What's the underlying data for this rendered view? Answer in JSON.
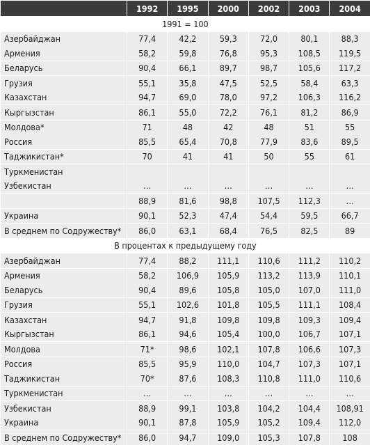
{
  "table": {
    "columns": [
      "",
      "1992",
      "1995",
      "2000",
      "2002",
      "2003",
      "2004"
    ],
    "sections": [
      {
        "title": "1991 = 100",
        "groups": [
          [
            {
              "name": "Азербайджан",
              "values": [
                "77,4",
                "42,2",
                "59,3",
                "72,0",
                "80,1",
                "88,3"
              ]
            },
            {
              "name": "Армения",
              "values": [
                "58,2",
                "59,8",
                "76,8",
                "95,3",
                "108,5",
                "119,5"
              ]
            }
          ],
          [
            {
              "name": "Беларусь",
              "values": [
                "90,4",
                "66,1",
                "89,7",
                "98,7",
                "105,6",
                "117,2"
              ]
            }
          ],
          [
            {
              "name": "Грузия",
              "values": [
                "55,1",
                "35,8",
                "47,5",
                "52,5",
                "58,4",
                "63,3"
              ]
            },
            {
              "name": "Казахстан",
              "values": [
                "94,7",
                "69,0",
                "78,0",
                "97,2",
                "106,3",
                "116,2"
              ]
            }
          ],
          [
            {
              "name": "Кыргызстан",
              "values": [
                "86,1",
                "55,0",
                "72,2",
                "76,1",
                "81,2",
                "86,9"
              ]
            }
          ],
          [
            {
              "name": "Молдова*",
              "values": [
                "71",
                "48",
                "42",
                "48",
                "51",
                "55"
              ]
            },
            {
              "name": "Россия",
              "values": [
                "85,5",
                "65,4",
                "70,8",
                "77,9",
                "83,6",
                "89,5"
              ]
            }
          ],
          [
            {
              "name": "Таджикистан*",
              "values": [
                "70",
                "41",
                "41",
                "50",
                "55",
                "61"
              ]
            }
          ],
          [
            {
              "name": "Туркменистан",
              "values": [
                "",
                "",
                "",
                "",
                "",
                ""
              ]
            },
            {
              "name": "Узбекистан",
              "values": [
                "…",
                "…",
                "…",
                "…",
                "…",
                "…"
              ]
            }
          ],
          [
            {
              "name": "",
              "values": [
                "88,9",
                "81,6",
                "98,8",
                "107,5",
                "112,3",
                "…"
              ]
            }
          ],
          [
            {
              "name": "Украина",
              "values": [
                "90,1",
                "52,3",
                "47,4",
                "54,4",
                "59,5",
                "66,7"
              ]
            }
          ],
          [
            {
              "name": "В среднем по Содружеству*",
              "values": [
                "86,0",
                "63,1",
                "68,4",
                "76,5",
                "82,5",
                "89"
              ]
            }
          ]
        ]
      },
      {
        "title": "В процентах к предыдущему году",
        "groups": [
          [
            {
              "name": "Азербайджан",
              "values": [
                "77,4",
                "88,2",
                "111,1",
                "110,6",
                "111,2",
                "110,2"
              ]
            }
          ],
          [
            {
              "name": "Армения",
              "values": [
                "58,2",
                "106,9",
                "105,9",
                "113,2",
                "113,9",
                "110,1"
              ]
            },
            {
              "name": "Беларусь",
              "values": [
                "90,4",
                "89,6",
                "105,8",
                "105,0",
                "107,0",
                "111,0"
              ]
            }
          ],
          [
            {
              "name": "Грузия",
              "values": [
                "55,1",
                "102,6",
                "101,8",
                "105,5",
                "111,1",
                "108,4"
              ]
            }
          ],
          [
            {
              "name": "Казахстан",
              "values": [
                "94,7",
                "91,8",
                "109,8",
                "109,8",
                "109,3",
                "109,4"
              ]
            },
            {
              "name": "Кыргызстан",
              "values": [
                "86,1",
                "94,6",
                "105,4",
                "100,0",
                "106,7",
                "107,1"
              ]
            }
          ],
          [
            {
              "name": "Молдова",
              "values": [
                "71*",
                "98,6",
                "102,1",
                "107,8",
                "106,6",
                "107,3"
              ]
            }
          ],
          [
            {
              "name": "Россия",
              "values": [
                "85,5",
                "95,9",
                "110,0",
                "104,7",
                "107,3",
                "107,1"
              ]
            },
            {
              "name": "Таджикистан",
              "values": [
                "70*",
                "87,6",
                "108,3",
                "110,8",
                "111,0",
                "110,6"
              ]
            }
          ],
          [
            {
              "name": "Туркменистан",
              "values": [
                "…",
                "…",
                "…",
                "…",
                "…",
                "…"
              ]
            }
          ],
          [
            {
              "name": "Узбекистан",
              "values": [
                "88,9",
                "99,1",
                "103,8",
                "104,2",
                "104,4",
                "108,91"
              ]
            },
            {
              "name": "Украина",
              "values": [
                "90,1",
                "87,8",
                "105,9",
                "105,2",
                "109,4",
                "112,0"
              ]
            }
          ],
          [
            {
              "name": "В среднем по Содружеству*",
              "values": [
                "86,0",
                "94,7",
                "109,0",
                "105,3",
                "107,8",
                "108"
              ]
            }
          ]
        ]
      }
    ]
  }
}
